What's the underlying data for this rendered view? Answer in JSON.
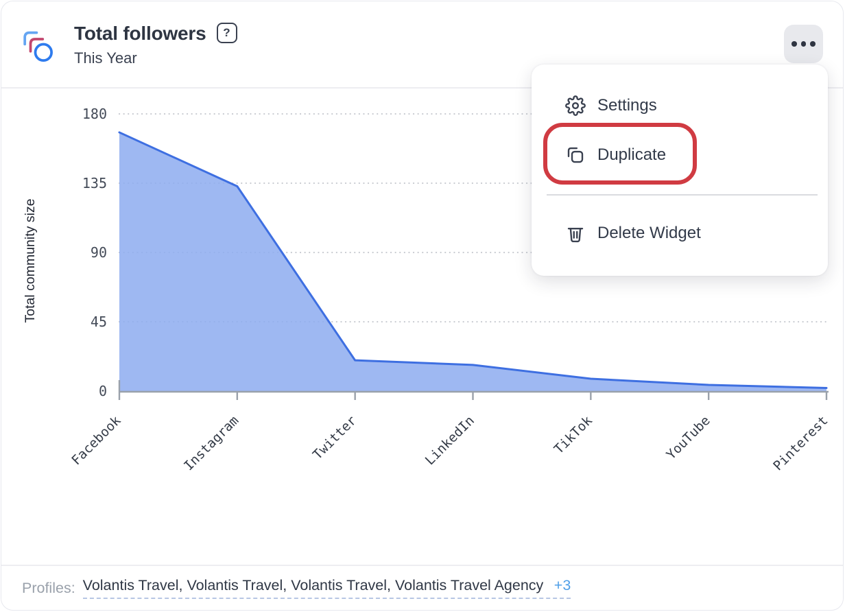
{
  "widget": {
    "title": "Total followers",
    "subtitle": "This Year",
    "help_icon": "?",
    "icons": {
      "header_icon": "widget-overlapping-shapes-icon",
      "menu_button_icon": "ellipsis-icon"
    }
  },
  "menu": {
    "items": [
      {
        "label": "Settings",
        "icon": "gear-icon"
      },
      {
        "label": "Duplicate",
        "icon": "duplicate-icon",
        "highlighted": true
      },
      {
        "label": "Delete Widget",
        "icon": "trash-icon"
      }
    ],
    "annotation_color": "#d03b42"
  },
  "chart_data": {
    "type": "area",
    "categories": [
      "Facebook",
      "Instagram",
      "Twitter",
      "LinkedIn",
      "TikTok",
      "YouTube",
      "Pinterest"
    ],
    "values": [
      168,
      133,
      20,
      17,
      8,
      4,
      2
    ],
    "title": "",
    "xlabel": "",
    "ylabel": "Total community size",
    "ylim": [
      0,
      180
    ],
    "yticks": [
      0,
      45,
      90,
      135,
      180
    ],
    "grid": "dotted-horizontal",
    "legend": "none",
    "fill_color": "#8dacf0",
    "line_color": "#3e6fe1"
  },
  "footer": {
    "label": "Profiles:",
    "profiles": "Volantis Travel, Volantis Travel, Volantis Travel, Volantis Travel Agency",
    "more": "+3"
  }
}
